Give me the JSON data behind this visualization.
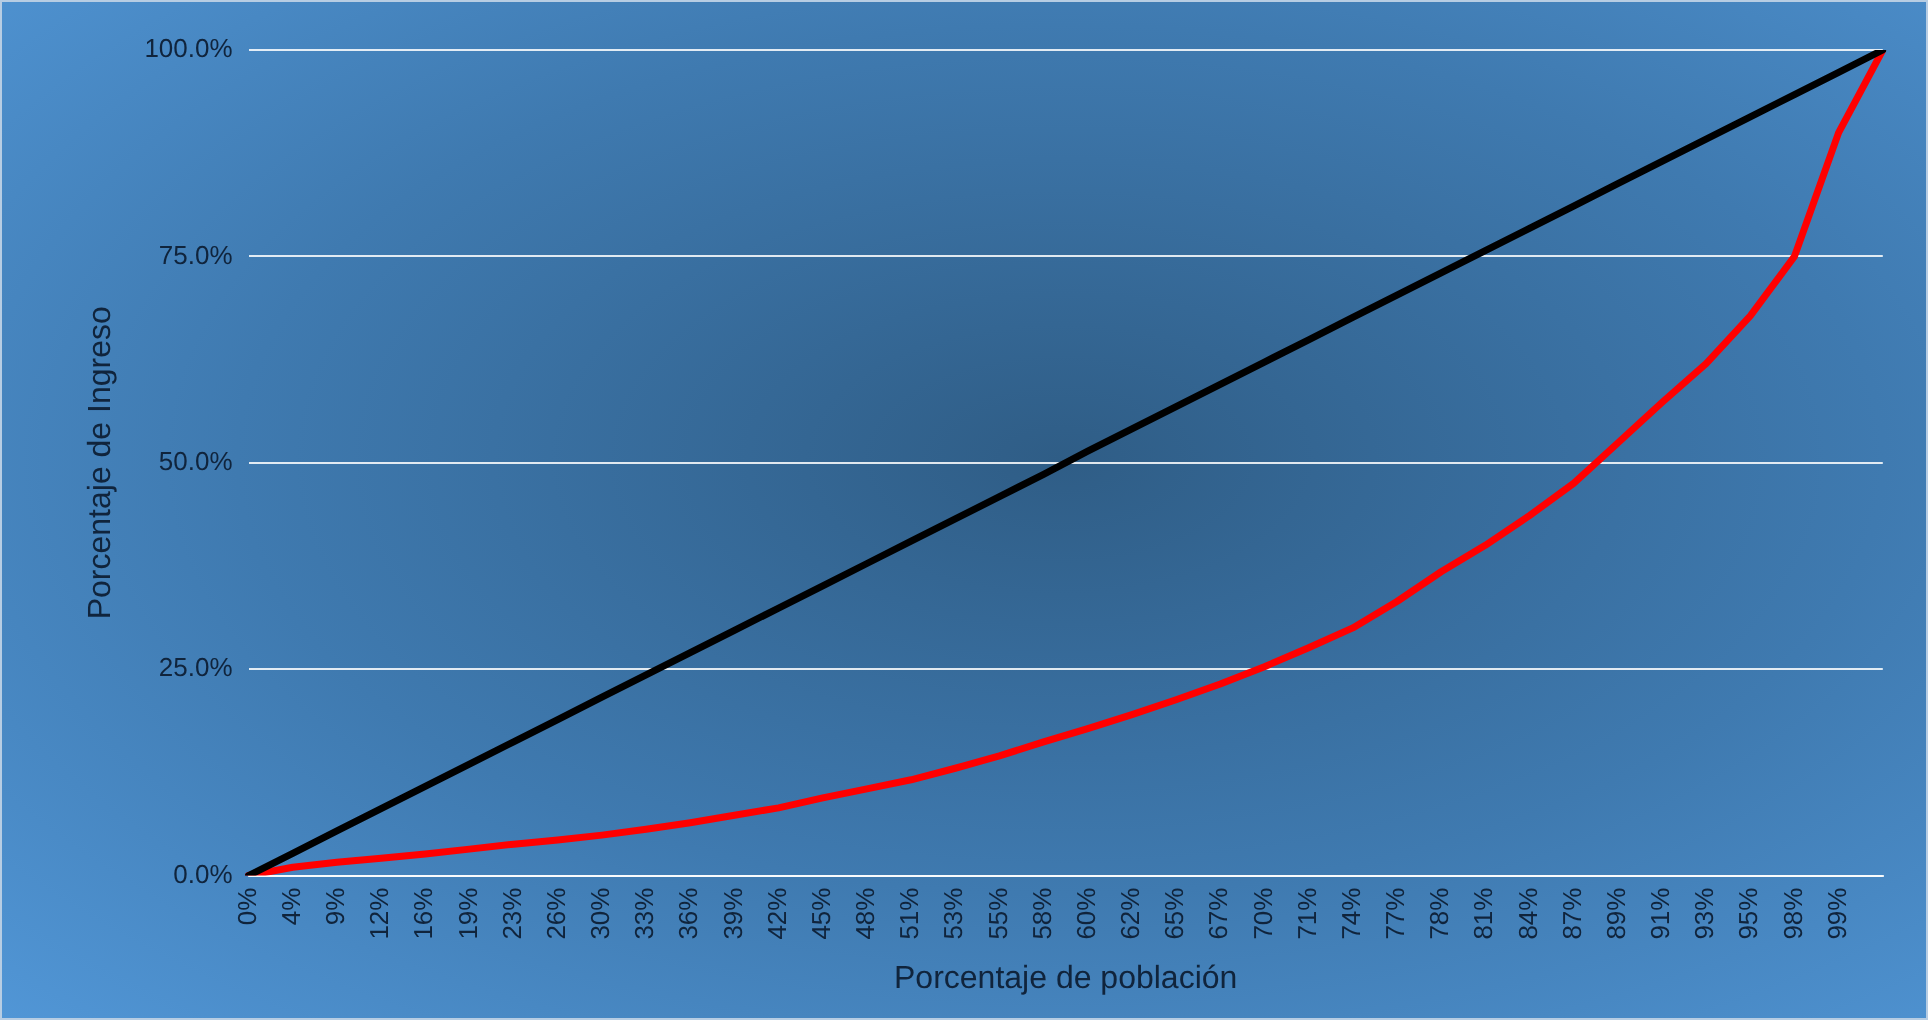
{
  "chart_data": {
    "type": "line",
    "xlabel": "Porcentaje de población",
    "ylabel": "Porcentaje de Ingreso",
    "categories": [
      "0%",
      "4%",
      "9%",
      "12%",
      "16%",
      "19%",
      "23%",
      "26%",
      "30%",
      "33%",
      "36%",
      "39%",
      "42%",
      "45%",
      "48%",
      "51%",
      "53%",
      "55%",
      "58%",
      "60%",
      "62%",
      "65%",
      "67%",
      "70%",
      "71%",
      "74%",
      "77%",
      "78%",
      "81%",
      "84%",
      "87%",
      "89%",
      "91%",
      "93%",
      "95%",
      "98%",
      "99%",
      null
    ],
    "series": [
      {
        "color": "#000000",
        "values": [
          0,
          2.7,
          5.4,
          8.1,
          10.8,
          13.5,
          16.2,
          18.9,
          21.6,
          24.3,
          27,
          29.7,
          32.4,
          35.1,
          37.8,
          40.5,
          43.2,
          45.9,
          48.6,
          51.4,
          54.1,
          56.8,
          59.5,
          62.2,
          64.9,
          67.6,
          70.3,
          73,
          75.7,
          78.4,
          81.1,
          83.8,
          86.5,
          89.2,
          91.9,
          94.6,
          97.3,
          100
        ]
      },
      {
        "color": "#ff0000",
        "values": [
          0,
          1,
          1.6,
          2.1,
          2.6,
          3.2,
          3.8,
          4.3,
          4.9,
          5.6,
          6.4,
          7.3,
          8.2,
          9.4,
          10.5,
          11.6,
          13,
          14.5,
          16.2,
          17.8,
          19.5,
          21.3,
          23.2,
          25.3,
          27.6,
          30,
          33.2,
          36.8,
          40,
          43.6,
          47.5,
          52.4,
          57.3,
          62,
          67.8,
          75,
          90,
          100
        ]
      }
    ],
    "ylim": [
      0,
      100
    ],
    "yticks": [
      {
        "value": 0,
        "label": "0.0%"
      },
      {
        "value": 25,
        "label": "25.0%"
      },
      {
        "value": 50,
        "label": "50.0%"
      },
      {
        "value": 75,
        "label": "75.0%"
      },
      {
        "value": 100,
        "label": "100.0%"
      }
    ],
    "grid": "y",
    "legend": false,
    "marker": "none",
    "line_style": "solid"
  }
}
